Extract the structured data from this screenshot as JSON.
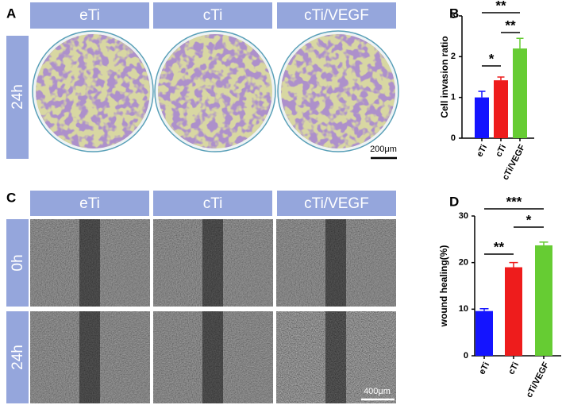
{
  "panel_a": {
    "label": "A",
    "columns": [
      "eTi",
      "cTi",
      "cTi/VEGF"
    ],
    "rows": [
      "24h"
    ],
    "scale_bar": "200μm"
  },
  "panel_c": {
    "label": "C",
    "columns": [
      "eTi",
      "cTi",
      "cTi/VEGF"
    ],
    "rows": [
      "0h",
      "24h"
    ],
    "scale_bar": "400μm"
  },
  "chart_data": [
    {
      "type": "bar",
      "panel_label": "B",
      "y_label": "Cell invasion ratio",
      "categories": [
        "eTi",
        "cTi",
        "cTi/VEGF"
      ],
      "values": [
        1.0,
        1.42,
        2.2
      ],
      "errors": [
        0.15,
        0.08,
        0.25
      ],
      "colors": [
        "#1414ff",
        "#ee1c1c",
        "#66cc33"
      ],
      "ylim": [
        0,
        3
      ],
      "yticks": [
        0,
        1,
        2,
        3
      ],
      "significance": [
        "*",
        "**",
        "**"
      ]
    },
    {
      "type": "bar",
      "panel_label": "D",
      "y_label": "wound healing(%)",
      "categories": [
        "eTi",
        "cTi",
        "cTi/VEGF"
      ],
      "values": [
        9.6,
        19,
        23.7
      ],
      "errors": [
        0.5,
        1,
        0.7
      ],
      "colors": [
        "#1414ff",
        "#ee1c1c",
        "#66cc33"
      ],
      "ylim": [
        0,
        30
      ],
      "yticks": [
        0,
        10,
        20,
        30
      ],
      "significance": [
        "**",
        "*",
        "***"
      ]
    }
  ]
}
